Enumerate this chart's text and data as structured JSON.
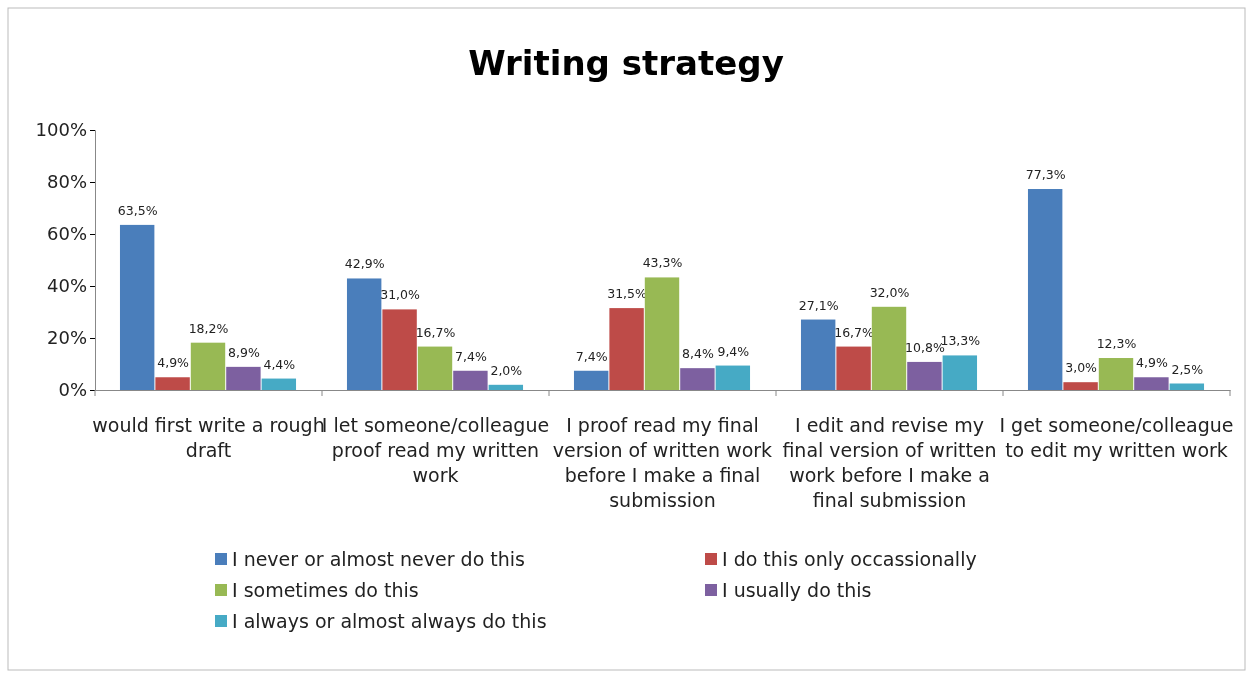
{
  "chart_data": {
    "type": "bar",
    "title": "Writing strategy",
    "categories": [
      "would first write a rough draft",
      "I let someone/colleague proof read my written work",
      "I proof read my final version of written work before I make a final submission",
      "I edit and revise my final version of written work before I make a final submission",
      "I get someone/colleague to edit my written work"
    ],
    "series": [
      {
        "name": "I never or almost never do this",
        "color": "#4a7ebb",
        "values": [
          63.5,
          42.9,
          7.4,
          27.1,
          77.3
        ],
        "value_labels": [
          "63,5%",
          "42,9%",
          "7,4%",
          "27,1%",
          "77,3%"
        ]
      },
      {
        "name": "I do this only occassionally",
        "color": "#be4b48",
        "values": [
          4.9,
          31.0,
          31.5,
          16.7,
          3.0
        ],
        "value_labels": [
          "4,9%",
          "31,0%",
          "31,5%",
          "16,7%",
          "3,0%"
        ]
      },
      {
        "name": "I sometimes do this",
        "color": "#98b954",
        "values": [
          18.2,
          16.7,
          43.3,
          32.0,
          12.3
        ],
        "value_labels": [
          "18,2%",
          "16,7%",
          "43,3%",
          "32,0%",
          "12,3%"
        ]
      },
      {
        "name": "I usually do this",
        "color": "#7d60a0",
        "values": [
          8.9,
          7.4,
          8.4,
          10.8,
          4.9
        ],
        "value_labels": [
          "8,9%",
          "7,4%",
          "8,4%",
          "10,8%",
          "4,9%"
        ]
      },
      {
        "name": "I always or almost always do this",
        "color": "#46aac5",
        "values": [
          4.4,
          2.0,
          9.4,
          13.3,
          2.5
        ],
        "value_labels": [
          "4,4%",
          "2,0%",
          "9,4%",
          "13,3%",
          "2,5%"
        ]
      }
    ],
    "ylim": [
      0,
      100
    ],
    "yticks": [
      {
        "value": 0,
        "label": "0%"
      },
      {
        "value": 20,
        "label": "20%"
      },
      {
        "value": 40,
        "label": "40%"
      },
      {
        "value": 60,
        "label": "60%"
      },
      {
        "value": 80,
        "label": "80%"
      },
      {
        "value": 100,
        "label": "100%"
      }
    ],
    "legend": "bottom",
    "grid": false
  }
}
